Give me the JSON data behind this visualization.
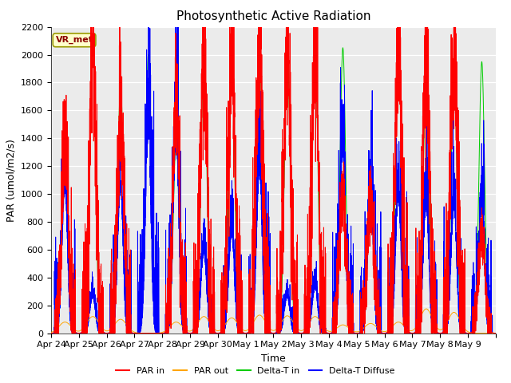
{
  "title": "Photosynthetic Active Radiation",
  "ylabel": "PAR (umol/m2/s)",
  "xlabel": "Time",
  "ylim": [
    0,
    2200
  ],
  "yticks": [
    0,
    200,
    400,
    600,
    800,
    1000,
    1200,
    1400,
    1600,
    1800,
    2000,
    2200
  ],
  "xtick_labels": [
    "Apr 24",
    "Apr 25",
    "Apr 26",
    "Apr 27",
    "Apr 28",
    "Apr 29",
    "Apr 30",
    "May 1",
    "May 2",
    "May 3",
    "May 4",
    "May 5",
    "May 6",
    "May 7",
    "May 8",
    "May 9"
  ],
  "n_days": 16,
  "legend_labels": [
    "PAR in",
    "PAR out",
    "Delta-T in",
    "Delta-T Diffuse"
  ],
  "legend_colors": [
    "#ff0000",
    "#ffa500",
    "#00cc00",
    "#0000ff"
  ],
  "background_color": "#e8e8e8",
  "plot_bg_color": "#ebebeb",
  "annotation_text": "VR_met",
  "annotation_color": "#8b0000",
  "annotation_bg": "#ffffcc",
  "annotation_edge": "#999900",
  "title_fontsize": 11,
  "tick_fontsize": 8,
  "axis_label_fontsize": 9,
  "legend_fontsize": 8,
  "par_in_peaks": [
    1400,
    2000,
    1600,
    0,
    1650,
    1900,
    2050,
    2050,
    2050,
    2050,
    1050,
    1000,
    2050,
    2050,
    2050,
    700
  ],
  "par_out_peaks": [
    80,
    120,
    100,
    0,
    80,
    120,
    110,
    130,
    125,
    120,
    60,
    70,
    80,
    175,
    150,
    0
  ],
  "delta_t_peaks": [
    1450,
    2050,
    1800,
    2000,
    1400,
    2050,
    2100,
    2050,
    2050,
    2050,
    2050,
    1050,
    2050,
    1950,
    1950,
    1950
  ],
  "delta_d_peaks": [
    800,
    200,
    800,
    1100,
    1100,
    450,
    550,
    900,
    200,
    250,
    1000,
    800,
    750,
    700,
    700,
    700
  ]
}
